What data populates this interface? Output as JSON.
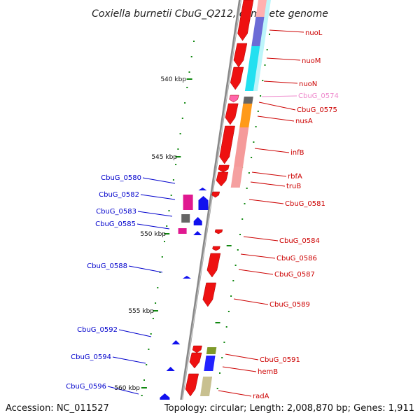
{
  "title": "Coxiella burnetii CbuG_Q212, complete genome",
  "footer": {
    "accession": "Accession: NC_011527",
    "summary": "Topology: circular; Length: 2,008,870 bp; Genes: 1,911"
  },
  "colors": {
    "forward_label": "#cc0000",
    "reverse_label": "#0000cc",
    "faded_label": "#ee88cc",
    "backbone": "#888888",
    "tick": "#118811",
    "forward_gene": "#ee1111",
    "reverse_gene": "#1111ee"
  },
  "kbp_marks": [
    "540 kbp",
    "545 kbp",
    "550 kbp",
    "555 kbp",
    "560 kbp"
  ],
  "forward_labels": [
    {
      "name": "nuoL",
      "color": "#cc0000"
    },
    {
      "name": "nuoM",
      "color": "#cc0000"
    },
    {
      "name": "nuoN",
      "color": "#cc0000"
    },
    {
      "name": "CbuG_0574",
      "color": "#ee88cc"
    },
    {
      "name": "CbuG_0575",
      "color": "#cc0000"
    },
    {
      "name": "nusA",
      "color": "#cc0000"
    },
    {
      "name": "infB",
      "color": "#cc0000"
    },
    {
      "name": "rbfA",
      "color": "#cc0000"
    },
    {
      "name": "truB",
      "color": "#cc0000"
    },
    {
      "name": "CbuG_0581",
      "color": "#cc0000"
    },
    {
      "name": "CbuG_0584",
      "color": "#cc0000"
    },
    {
      "name": "CbuG_0586",
      "color": "#cc0000"
    },
    {
      "name": "CbuG_0587",
      "color": "#cc0000"
    },
    {
      "name": "CbuG_0589",
      "color": "#cc0000"
    },
    {
      "name": "CbuG_0591",
      "color": "#cc0000"
    },
    {
      "name": "hemB",
      "color": "#cc0000"
    },
    {
      "name": "radA",
      "color": "#cc0000"
    }
  ],
  "reverse_labels": [
    {
      "name": "CbuG_0580",
      "color": "#0000cc"
    },
    {
      "name": "CbuG_0582",
      "color": "#0000cc"
    },
    {
      "name": "CbuG_0583",
      "color": "#0000cc"
    },
    {
      "name": "CbuG_0585",
      "color": "#0000cc"
    },
    {
      "name": "CbuG_0588",
      "color": "#0000cc"
    },
    {
      "name": "CbuG_0592",
      "color": "#0000cc"
    },
    {
      "name": "CbuG_0594",
      "color": "#0000cc"
    },
    {
      "name": "CbuG_0596",
      "color": "#0000cc"
    }
  ]
}
